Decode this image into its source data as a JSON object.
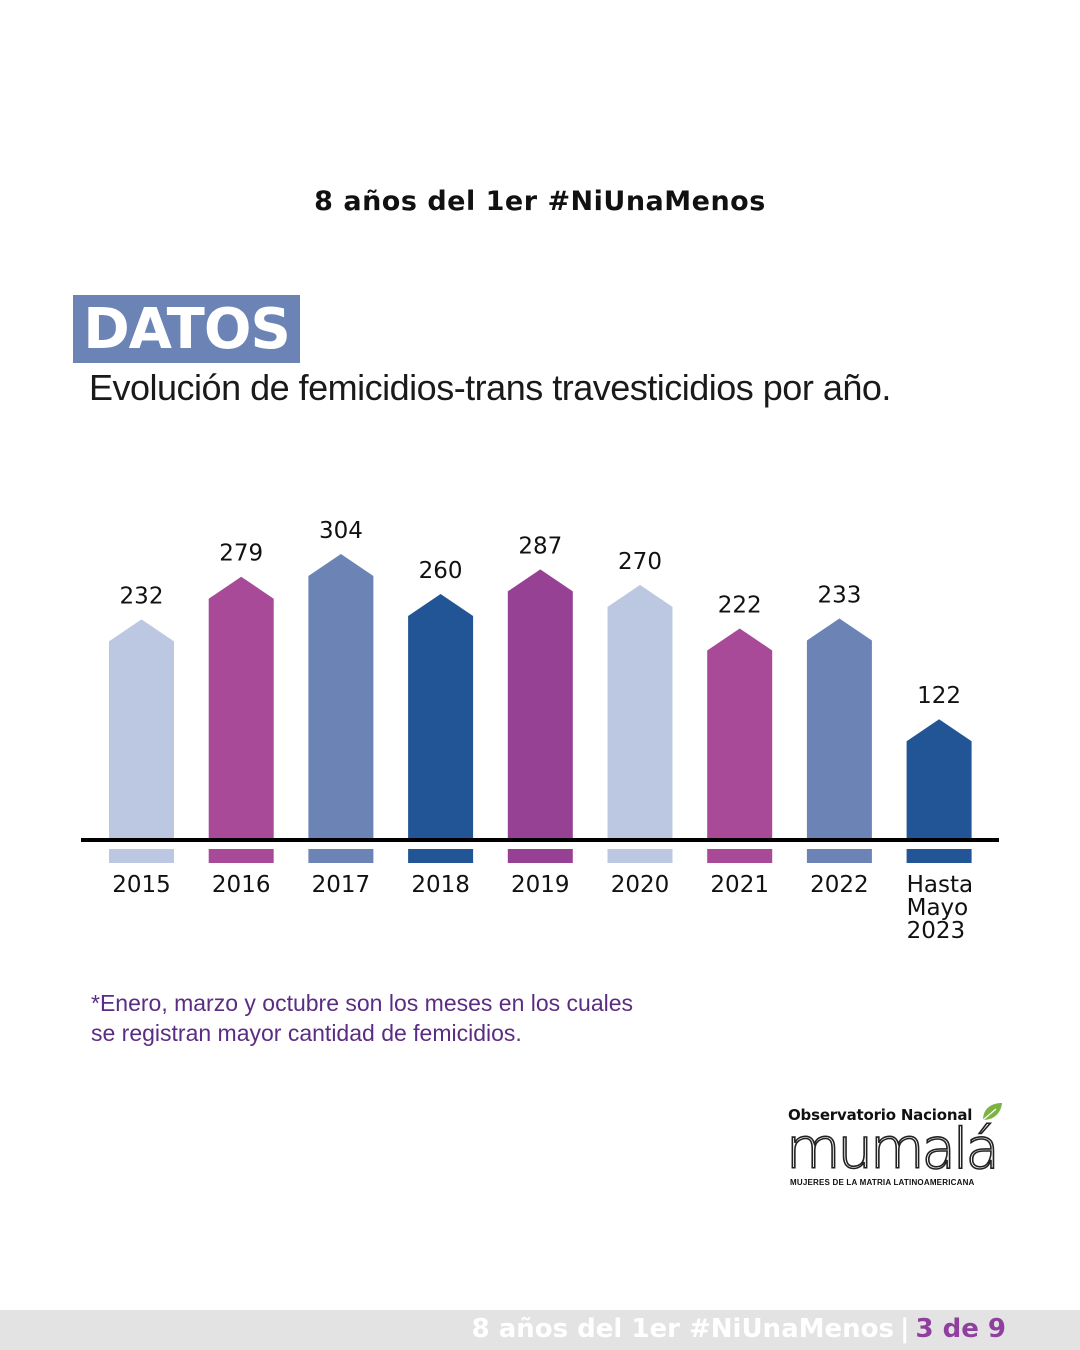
{
  "header": {
    "headline_prefix": "8 años del 1er",
    "headline_hashtag": "#NiUnaMenos"
  },
  "badge": {
    "label": "DATOS"
  },
  "subtitle": "Evolución de femicidios-trans travesticidios por año.",
  "chart_data": {
    "type": "bar",
    "title": "Evolución de femicidios-trans travesticidios por año.",
    "categories": [
      "2015",
      "2016",
      "2017",
      "2018",
      "2019",
      "2020",
      "2021",
      "2022",
      "Hasta Mayo 2023"
    ],
    "category_lines": [
      [
        "2015"
      ],
      [
        "2016"
      ],
      [
        "2017"
      ],
      [
        "2018"
      ],
      [
        "2019"
      ],
      [
        "2020"
      ],
      [
        "2021"
      ],
      [
        "2022"
      ],
      [
        "Hasta",
        "Mayo",
        "2023"
      ]
    ],
    "values": [
      232,
      279,
      304,
      260,
      287,
      270,
      222,
      233,
      122
    ],
    "colors": [
      "#bcc8e1",
      "#a84a98",
      "#6b84b5",
      "#225595",
      "#974194",
      "#bcc8e1",
      "#a84a98",
      "#6b84b5",
      "#225595"
    ],
    "xlabel": "",
    "ylabel": "",
    "ylim": [
      0,
      304
    ],
    "grid": false,
    "legend": "none"
  },
  "footnote": {
    "line1": "*Enero, marzo y octubre son los meses en los cuales",
    "line2": "se registran mayor cantidad de femicidios."
  },
  "logo": {
    "title": "Observatorio Nacional",
    "wordmark": "mumalá",
    "tagline": "MUJERES DE LA MATRIA LATINOAMERICANA",
    "leaf_color": "#7cb342"
  },
  "footer": {
    "text": "8 años del 1er #NiUnaMenos",
    "separator": "|",
    "page": "3 de 9"
  }
}
